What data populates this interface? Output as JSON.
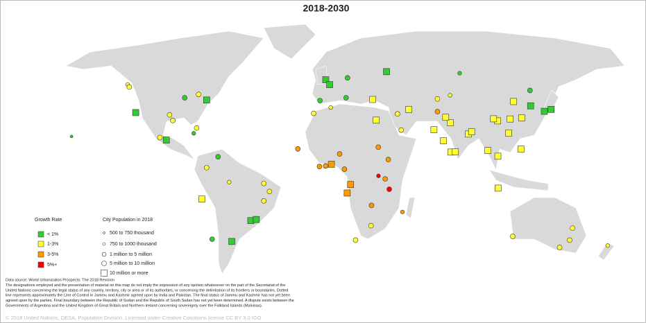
{
  "map": {
    "title": "2018-2030",
    "growth_legend": {
      "title": "Growth Rate",
      "items": [
        {
          "label": "< 1%",
          "color": "#33cc33"
        },
        {
          "label": "1-3%",
          "color": "#ffff33"
        },
        {
          "label": "3-5%",
          "color": "#ff9900"
        },
        {
          "label": "5%+",
          "color": "#ff0000"
        }
      ]
    },
    "size_legend": {
      "title": "City Population in 2018",
      "items": [
        {
          "label": "500 to 750 thousand"
        },
        {
          "label": "750 to 1000 thousand"
        },
        {
          "label": "1 million to 5 million"
        },
        {
          "label": "5 million to 10 million"
        },
        {
          "label": "10 million or more"
        }
      ]
    },
    "notes": [
      "Data source: World Urbanization Prospects: The 2018 Revision",
      "The designations employed and the presentation of material on this map do not imply the expression of any opinion whatsoever on the part of the Secretariat of the",
      "United Nations concerning the legal status of any country, territory, city or area or of its authorities, or concerning the delimitation of its frontiers or boundaries. Dotted",
      "line represents approximately the Line of Control in Jammu and Kashmir agreed upon by India and Pakistan. The final status of Jammu and Kashmir has not yet been",
      "agreed upon by the parties. Final boundary between the Republic of Sudan and the Republic of South Sudan has not yet been determined. A dispute exists between the",
      "Governments of Argentina and the United Kingdom of Great Britain and Northern Ireland concerning sovereignty over the Falkland Islands (Malvinas)."
    ],
    "copyright": "© 2018 United Nations, DESA, Population Division. Licensed under Creative Commons license CC BY 3.0 IGO.",
    "cities": [
      [
        -74,
        40.7,
        0,
        4
      ],
      [
        -118,
        34,
        0,
        4
      ],
      [
        -87.6,
        41.9,
        0,
        3
      ],
      [
        -95,
        29.8,
        1,
        3
      ],
      [
        -97,
        32.8,
        1,
        3
      ],
      [
        -79,
        43.7,
        1,
        3
      ],
      [
        -99,
        19.4,
        0,
        4
      ],
      [
        -103,
        20.7,
        1,
        3
      ],
      [
        -74,
        4.7,
        1,
        3
      ],
      [
        -77,
        -12,
        1,
        4
      ],
      [
        -46.6,
        -23.5,
        0,
        4
      ],
      [
        -43.2,
        -22.9,
        0,
        4
      ],
      [
        -58.4,
        -34.6,
        0,
        4
      ],
      [
        -70.6,
        -33.4,
        0,
        3
      ],
      [
        -66.9,
        10.5,
        0,
        3
      ],
      [
        -82,
        23,
        0,
        2
      ],
      [
        -157.8,
        21.3,
        0,
        1
      ],
      [
        -123,
        49,
        1,
        2
      ],
      [
        -122,
        47.6,
        1,
        3
      ],
      [
        -80.2,
        25.8,
        1,
        3
      ],
      [
        -35,
        -8,
        1,
        3
      ],
      [
        -38.5,
        -13,
        1,
        3
      ],
      [
        -38.5,
        -3.7,
        1,
        3
      ],
      [
        -60,
        -3,
        1,
        2
      ],
      [
        -0.1,
        51.5,
        0,
        4
      ],
      [
        2.3,
        48.9,
        0,
        4
      ],
      [
        -3.7,
        40.4,
        0,
        3
      ],
      [
        12.5,
        41.9,
        0,
        3
      ],
      [
        13.4,
        52.5,
        0,
        3
      ],
      [
        37.6,
        55.8,
        0,
        4
      ],
      [
        29,
        41,
        1,
        4
      ],
      [
        31.2,
        30,
        1,
        4
      ],
      [
        3.4,
        6.5,
        2,
        4
      ],
      [
        15.3,
        -4.3,
        2,
        4
      ],
      [
        13.2,
        -8.8,
        2,
        4
      ],
      [
        36.8,
        -1.3,
        2,
        3
      ],
      [
        39.3,
        -6.8,
        3,
        3
      ],
      [
        38.7,
        9,
        2,
        3
      ],
      [
        28,
        -26.2,
        1,
        3
      ],
      [
        18.4,
        -33.9,
        1,
        3
      ],
      [
        -4,
        5.3,
        2,
        3
      ],
      [
        -0.2,
        5.6,
        2,
        3
      ],
      [
        -17.4,
        14.7,
        2,
        3
      ],
      [
        32.5,
        15.6,
        2,
        3
      ],
      [
        8.5,
        12,
        2,
        3
      ],
      [
        51.4,
        35.7,
        1,
        4
      ],
      [
        46.7,
        24.7,
        1,
        3
      ],
      [
        44.4,
        33.3,
        1,
        3
      ],
      [
        67,
        24.9,
        1,
        4
      ],
      [
        77.2,
        28.6,
        1,
        4
      ],
      [
        72.9,
        19,
        1,
        4
      ],
      [
        88.4,
        22.6,
        1,
        4
      ],
      [
        90.4,
        23.8,
        1,
        4
      ],
      [
        77.6,
        13,
        1,
        4
      ],
      [
        80.3,
        13.1,
        1,
        4
      ],
      [
        116.4,
        39.9,
        1,
        4
      ],
      [
        121.5,
        31.2,
        1,
        4
      ],
      [
        113.3,
        23.1,
        1,
        4
      ],
      [
        106.5,
        29.6,
        1,
        4
      ],
      [
        139.7,
        35.7,
        0,
        4
      ],
      [
        135.5,
        34.7,
        0,
        4
      ],
      [
        127,
        37.6,
        0,
        4
      ],
      [
        121,
        14.6,
        1,
        4
      ],
      [
        106.8,
        -6.2,
        1,
        4
      ],
      [
        100.5,
        13.8,
        1,
        4
      ],
      [
        106.7,
        10.8,
        1,
        4
      ],
      [
        151.2,
        -33.9,
        1,
        3
      ],
      [
        145,
        -37.8,
        1,
        3
      ],
      [
        115.9,
        -31.9,
        1,
        3
      ],
      [
        153,
        -27.5,
        1,
        3
      ],
      [
        174.8,
        -36.8,
        1,
        2
      ],
      [
        114.3,
        30.6,
        1,
        4
      ],
      [
        104,
        30.7,
        1,
        4
      ],
      [
        126.6,
        45.8,
        0,
        3
      ],
      [
        69.2,
        41.3,
        1,
        3
      ],
      [
        77,
        43.2,
        1,
        2
      ],
      [
        83,
        55,
        0,
        2
      ],
      [
        69.2,
        34.5,
        2,
        3
      ],
      [
        74.3,
        31.5,
        1,
        4
      ],
      [
        47.5,
        -18.9,
        2,
        2
      ],
      [
        28.3,
        -15.4,
        2,
        3
      ],
      [
        32.6,
        0.3,
        3,
        2
      ],
      [
        11.5,
        3.9,
        2,
        3
      ],
      [
        -7.6,
        33.6,
        1,
        3
      ],
      [
        3,
        36.7,
        1,
        2
      ]
    ]
  }
}
